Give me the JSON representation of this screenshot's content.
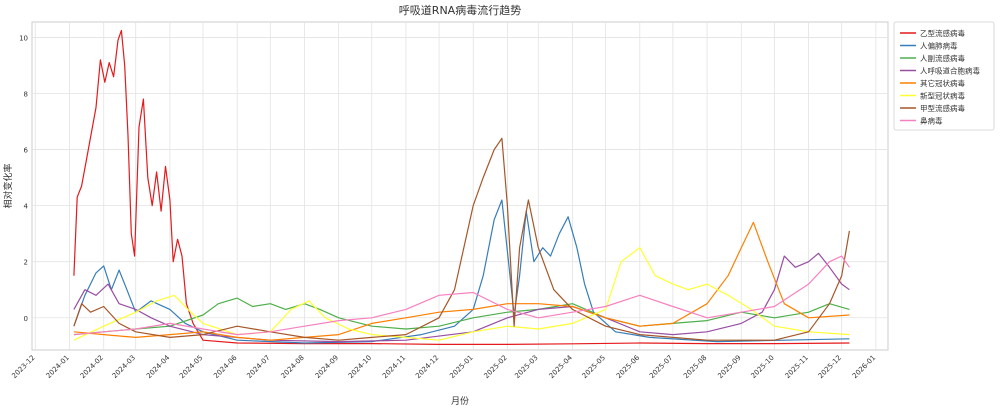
{
  "chart_data": {
    "type": "line",
    "title": "呼吸道RNA病毒流行趋势",
    "xlabel": "月份",
    "ylabel": "相对变化率",
    "xlim": [
      "2023-11-28",
      "2026-01-12"
    ],
    "ylim": [
      -1.15,
      10.55
    ],
    "yticks": [
      0,
      2,
      4,
      6,
      8,
      10
    ],
    "xticks": [
      "2023-12",
      "2024-01",
      "2024-02",
      "2024-03",
      "2024-04",
      "2024-05",
      "2024-06",
      "2024-07",
      "2024-08",
      "2024-09",
      "2024-10",
      "2024-11",
      "2024-12",
      "2025-01",
      "2025-02",
      "2025-03",
      "2025-04",
      "2025-05",
      "2025-06",
      "2025-07",
      "2025-08",
      "2025-09",
      "2025-10",
      "2025-11",
      "2025-12",
      "2026-01"
    ],
    "grid": true,
    "legend_position": "outside-top-right",
    "series": [
      {
        "name": "乙型流感病毒",
        "color": "#e41a1c",
        "points": [
          [
            "2024-01-05",
            1.5
          ],
          [
            "2024-01-08",
            4.3
          ],
          [
            "2024-01-12",
            4.7
          ],
          [
            "2024-01-18",
            6.0
          ],
          [
            "2024-01-25",
            7.5
          ],
          [
            "2024-01-29",
            9.2
          ],
          [
            "2024-02-02",
            8.4
          ],
          [
            "2024-02-06",
            9.1
          ],
          [
            "2024-02-10",
            8.6
          ],
          [
            "2024-02-14",
            9.9
          ],
          [
            "2024-02-17",
            10.25
          ],
          [
            "2024-02-20",
            9.0
          ],
          [
            "2024-02-23",
            6.5
          ],
          [
            "2024-02-26",
            3.0
          ],
          [
            "2024-02-29",
            2.2
          ],
          [
            "2024-03-04",
            6.8
          ],
          [
            "2024-03-08",
            7.8
          ],
          [
            "2024-03-12",
            5.0
          ],
          [
            "2024-03-16",
            4.0
          ],
          [
            "2024-03-20",
            5.2
          ],
          [
            "2024-03-24",
            3.8
          ],
          [
            "2024-03-28",
            5.4
          ],
          [
            "2024-04-01",
            4.2
          ],
          [
            "2024-04-04",
            2.0
          ],
          [
            "2024-04-08",
            2.8
          ],
          [
            "2024-04-12",
            2.2
          ],
          [
            "2024-04-16",
            0.5
          ],
          [
            "2024-04-22",
            -0.2
          ],
          [
            "2024-05-01",
            -0.8
          ],
          [
            "2024-06-01",
            -0.9
          ],
          [
            "2024-08-01",
            -0.92
          ],
          [
            "2024-10-01",
            -0.92
          ],
          [
            "2024-12-01",
            -0.95
          ],
          [
            "2025-02-01",
            -0.95
          ],
          [
            "2025-04-01",
            -0.93
          ],
          [
            "2025-06-01",
            -0.9
          ],
          [
            "2025-08-01",
            -0.92
          ],
          [
            "2025-10-01",
            -0.92
          ],
          [
            "2025-12-08",
            -0.9
          ]
        ]
      },
      {
        "name": "人偏肺病毒",
        "color": "#377eb8",
        "points": [
          [
            "2024-01-05",
            -0.3
          ],
          [
            "2024-01-15",
            0.8
          ],
          [
            "2024-01-25",
            1.6
          ],
          [
            "2024-02-01",
            1.85
          ],
          [
            "2024-02-08",
            1.0
          ],
          [
            "2024-02-15",
            1.7
          ],
          [
            "2024-02-22",
            1.0
          ],
          [
            "2024-03-01",
            0.2
          ],
          [
            "2024-03-15",
            0.6
          ],
          [
            "2024-04-01",
            0.3
          ],
          [
            "2024-04-15",
            -0.2
          ],
          [
            "2024-05-01",
            -0.5
          ],
          [
            "2024-06-01",
            -0.8
          ],
          [
            "2024-08-01",
            -0.9
          ],
          [
            "2024-10-01",
            -0.85
          ],
          [
            "2024-11-15",
            -0.6
          ],
          [
            "2024-12-15",
            -0.3
          ],
          [
            "2025-01-01",
            0.3
          ],
          [
            "2025-01-10",
            1.5
          ],
          [
            "2025-01-20",
            3.5
          ],
          [
            "2025-01-27",
            4.2
          ],
          [
            "2025-02-02",
            2.0
          ],
          [
            "2025-02-07",
            0.1
          ],
          [
            "2025-02-12",
            1.5
          ],
          [
            "2025-02-18",
            3.8
          ],
          [
            "2025-02-25",
            2.0
          ],
          [
            "2025-03-05",
            2.5
          ],
          [
            "2025-03-12",
            2.2
          ],
          [
            "2025-03-20",
            3.0
          ],
          [
            "2025-03-28",
            3.6
          ],
          [
            "2025-04-05",
            2.5
          ],
          [
            "2025-04-12",
            1.2
          ],
          [
            "2025-04-20",
            0.2
          ],
          [
            "2025-05-10",
            -0.5
          ],
          [
            "2025-06-10",
            -0.7
          ],
          [
            "2025-08-10",
            -0.85
          ],
          [
            "2025-10-10",
            -0.8
          ],
          [
            "2025-12-08",
            -0.75
          ]
        ]
      },
      {
        "name": "人副流感病毒",
        "color": "#4daf4a",
        "points": [
          [
            "2024-01-05",
            -0.6
          ],
          [
            "2024-02-01",
            -0.5
          ],
          [
            "2024-03-01",
            -0.4
          ],
          [
            "2024-04-01",
            -0.3
          ],
          [
            "2024-05-01",
            0.1
          ],
          [
            "2024-05-15",
            0.5
          ],
          [
            "2024-06-01",
            0.7
          ],
          [
            "2024-06-15",
            0.4
          ],
          [
            "2024-07-01",
            0.5
          ],
          [
            "2024-07-15",
            0.3
          ],
          [
            "2024-08-01",
            0.5
          ],
          [
            "2024-08-15",
            0.3
          ],
          [
            "2024-09-01",
            0.0
          ],
          [
            "2024-10-01",
            -0.3
          ],
          [
            "2024-11-01",
            -0.4
          ],
          [
            "2024-12-01",
            -0.3
          ],
          [
            "2025-01-01",
            0.0
          ],
          [
            "2025-02-01",
            0.2
          ],
          [
            "2025-03-01",
            0.3
          ],
          [
            "2025-04-01",
            0.5
          ],
          [
            "2025-05-01",
            0.0
          ],
          [
            "2025-06-01",
            -0.3
          ],
          [
            "2025-07-01",
            -0.2
          ],
          [
            "2025-08-01",
            -0.1
          ],
          [
            "2025-09-01",
            0.2
          ],
          [
            "2025-10-01",
            0.0
          ],
          [
            "2025-11-01",
            0.2
          ],
          [
            "2025-11-20",
            0.5
          ],
          [
            "2025-12-08",
            0.3
          ]
        ]
      },
      {
        "name": "人呼吸道合胞病毒",
        "color": "#984ea3",
        "points": [
          [
            "2024-01-05",
            0.3
          ],
          [
            "2024-01-15",
            1.0
          ],
          [
            "2024-01-25",
            0.8
          ],
          [
            "2024-02-05",
            1.2
          ],
          [
            "2024-02-15",
            0.5
          ],
          [
            "2024-03-01",
            0.3
          ],
          [
            "2024-03-15",
            0.0
          ],
          [
            "2024-04-01",
            -0.3
          ],
          [
            "2024-05-01",
            -0.6
          ],
          [
            "2024-07-01",
            -0.8
          ],
          [
            "2024-09-01",
            -0.85
          ],
          [
            "2024-11-01",
            -0.8
          ],
          [
            "2025-01-01",
            -0.5
          ],
          [
            "2025-02-01",
            0.0
          ],
          [
            "2025-03-01",
            0.3
          ],
          [
            "2025-04-01",
            0.4
          ],
          [
            "2025-05-01",
            0.0
          ],
          [
            "2025-06-01",
            -0.5
          ],
          [
            "2025-07-01",
            -0.6
          ],
          [
            "2025-08-01",
            -0.5
          ],
          [
            "2025-09-01",
            -0.2
          ],
          [
            "2025-09-20",
            0.2
          ],
          [
            "2025-10-01",
            1.0
          ],
          [
            "2025-10-10",
            2.2
          ],
          [
            "2025-10-20",
            1.8
          ],
          [
            "2025-11-01",
            2.0
          ],
          [
            "2025-11-10",
            2.3
          ],
          [
            "2025-11-20",
            1.8
          ],
          [
            "2025-12-01",
            1.2
          ],
          [
            "2025-12-08",
            1.0
          ]
        ]
      },
      {
        "name": "其它冠状病毒",
        "color": "#ff7f00",
        "points": [
          [
            "2024-01-05",
            -0.5
          ],
          [
            "2024-02-01",
            -0.6
          ],
          [
            "2024-03-01",
            -0.7
          ],
          [
            "2024-04-01",
            -0.6
          ],
          [
            "2024-05-01",
            -0.5
          ],
          [
            "2024-06-01",
            -0.7
          ],
          [
            "2024-07-01",
            -0.8
          ],
          [
            "2024-08-01",
            -0.7
          ],
          [
            "2024-09-01",
            -0.6
          ],
          [
            "2024-10-01",
            -0.2
          ],
          [
            "2024-11-01",
            0.0
          ],
          [
            "2024-12-01",
            0.2
          ],
          [
            "2025-01-01",
            0.3
          ],
          [
            "2025-02-01",
            0.5
          ],
          [
            "2025-03-01",
            0.5
          ],
          [
            "2025-04-01",
            0.4
          ],
          [
            "2025-05-01",
            0.0
          ],
          [
            "2025-06-01",
            -0.3
          ],
          [
            "2025-07-01",
            -0.2
          ],
          [
            "2025-08-01",
            0.5
          ],
          [
            "2025-08-20",
            1.5
          ],
          [
            "2025-09-01",
            2.5
          ],
          [
            "2025-09-12",
            3.4
          ],
          [
            "2025-09-25",
            2.0
          ],
          [
            "2025-10-10",
            0.5
          ],
          [
            "2025-11-01",
            0.0
          ],
          [
            "2025-12-08",
            0.1
          ]
        ]
      },
      {
        "name": "新型冠状病毒",
        "color": "#ffff33",
        "points": [
          [
            "2024-01-05",
            -0.8
          ],
          [
            "2024-02-01",
            -0.3
          ],
          [
            "2024-03-01",
            0.2
          ],
          [
            "2024-03-20",
            0.6
          ],
          [
            "2024-04-05",
            0.8
          ],
          [
            "2024-04-20",
            0.2
          ],
          [
            "2024-05-01",
            -0.2
          ],
          [
            "2024-06-01",
            -0.6
          ],
          [
            "2024-07-01",
            -0.5
          ],
          [
            "2024-07-20",
            0.3
          ],
          [
            "2024-08-05",
            0.6
          ],
          [
            "2024-08-20",
            0.0
          ],
          [
            "2024-09-10",
            -0.4
          ],
          [
            "2024-10-01",
            -0.6
          ],
          [
            "2024-11-01",
            -0.7
          ],
          [
            "2024-12-01",
            -0.8
          ],
          [
            "2025-01-01",
            -0.5
          ],
          [
            "2025-02-01",
            -0.3
          ],
          [
            "2025-03-01",
            -0.4
          ],
          [
            "2025-04-01",
            -0.2
          ],
          [
            "2025-05-01",
            0.3
          ],
          [
            "2025-05-15",
            2.0
          ],
          [
            "2025-06-01",
            2.5
          ],
          [
            "2025-06-15",
            1.5
          ],
          [
            "2025-07-01",
            1.2
          ],
          [
            "2025-07-15",
            1.0
          ],
          [
            "2025-08-01",
            1.2
          ],
          [
            "2025-08-20",
            0.8
          ],
          [
            "2025-09-10",
            0.3
          ],
          [
            "2025-10-01",
            -0.3
          ],
          [
            "2025-11-01",
            -0.5
          ],
          [
            "2025-12-08",
            -0.6
          ]
        ]
      },
      {
        "name": "甲型流感病毒",
        "color": "#a65628",
        "points": [
          [
            "2024-01-05",
            -0.3
          ],
          [
            "2024-01-12",
            0.5
          ],
          [
            "2024-01-20",
            0.2
          ],
          [
            "2024-02-01",
            0.4
          ],
          [
            "2024-02-15",
            -0.2
          ],
          [
            "2024-03-01",
            -0.5
          ],
          [
            "2024-04-01",
            -0.7
          ],
          [
            "2024-05-01",
            -0.6
          ],
          [
            "2024-06-01",
            -0.3
          ],
          [
            "2024-07-01",
            -0.5
          ],
          [
            "2024-08-01",
            -0.7
          ],
          [
            "2024-09-01",
            -0.8
          ],
          [
            "2024-10-01",
            -0.7
          ],
          [
            "2024-11-01",
            -0.6
          ],
          [
            "2024-12-01",
            0.0
          ],
          [
            "2024-12-15",
            1.0
          ],
          [
            "2025-01-01",
            4.0
          ],
          [
            "2025-01-10",
            5.0
          ],
          [
            "2025-01-20",
            6.0
          ],
          [
            "2025-01-27",
            6.4
          ],
          [
            "2025-02-01",
            4.0
          ],
          [
            "2025-02-07",
            -0.3
          ],
          [
            "2025-02-12",
            2.5
          ],
          [
            "2025-02-20",
            4.2
          ],
          [
            "2025-03-01",
            2.5
          ],
          [
            "2025-03-15",
            1.0
          ],
          [
            "2025-04-01",
            0.3
          ],
          [
            "2025-05-01",
            -0.3
          ],
          [
            "2025-06-01",
            -0.6
          ],
          [
            "2025-08-01",
            -0.8
          ],
          [
            "2025-10-01",
            -0.8
          ],
          [
            "2025-11-01",
            -0.5
          ],
          [
            "2025-11-20",
            0.5
          ],
          [
            "2025-12-01",
            1.5
          ],
          [
            "2025-12-08",
            3.1
          ]
        ]
      },
      {
        "name": "鼻病毒",
        "color": "#f781bf",
        "points": [
          [
            "2024-01-05",
            -0.6
          ],
          [
            "2024-02-01",
            -0.5
          ],
          [
            "2024-03-01",
            -0.4
          ],
          [
            "2024-04-01",
            -0.2
          ],
          [
            "2024-05-01",
            -0.4
          ],
          [
            "2024-06-01",
            -0.6
          ],
          [
            "2024-07-01",
            -0.5
          ],
          [
            "2024-08-01",
            -0.3
          ],
          [
            "2024-09-01",
            -0.1
          ],
          [
            "2024-10-01",
            0.0
          ],
          [
            "2024-11-01",
            0.3
          ],
          [
            "2024-12-01",
            0.8
          ],
          [
            "2025-01-01",
            0.9
          ],
          [
            "2025-02-01",
            0.3
          ],
          [
            "2025-03-01",
            0.0
          ],
          [
            "2025-04-01",
            0.2
          ],
          [
            "2025-05-01",
            0.4
          ],
          [
            "2025-06-01",
            0.8
          ],
          [
            "2025-07-01",
            0.4
          ],
          [
            "2025-08-01",
            0.0
          ],
          [
            "2025-09-01",
            0.2
          ],
          [
            "2025-10-01",
            0.4
          ],
          [
            "2025-11-01",
            1.2
          ],
          [
            "2025-11-20",
            2.0
          ],
          [
            "2025-12-01",
            2.2
          ],
          [
            "2025-12-08",
            1.8
          ]
        ]
      }
    ]
  }
}
